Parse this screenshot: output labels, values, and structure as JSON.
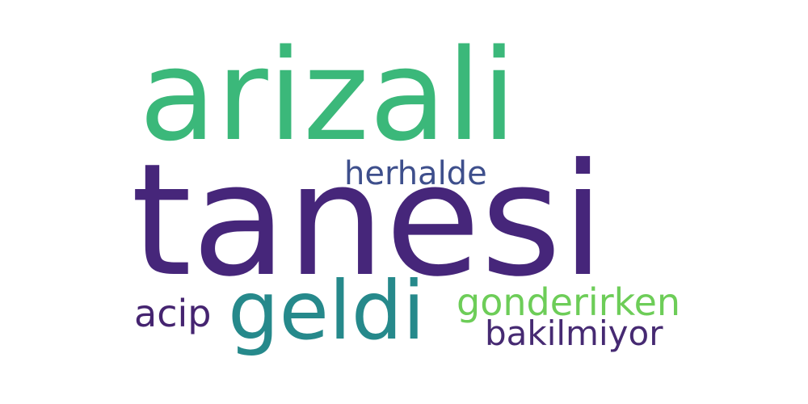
{
  "words": [
    {
      "id": "arizali",
      "text": "arizali",
      "color": "#3bb87a"
    },
    {
      "id": "tanesi",
      "text": "tanesi",
      "color": "#46267a"
    },
    {
      "id": "herhalde",
      "text": "herhalde",
      "color": "#3e4f8c"
    },
    {
      "id": "geldi",
      "text": "geldi",
      "color": "#26898b"
    },
    {
      "id": "acip",
      "text": "acip",
      "color": "#452470"
    },
    {
      "id": "gonderirken",
      "text": "gonderirken",
      "color": "#6dcd58"
    },
    {
      "id": "bakilmiyor",
      "text": "bakilmiyor",
      "color": "#462a72"
    }
  ]
}
